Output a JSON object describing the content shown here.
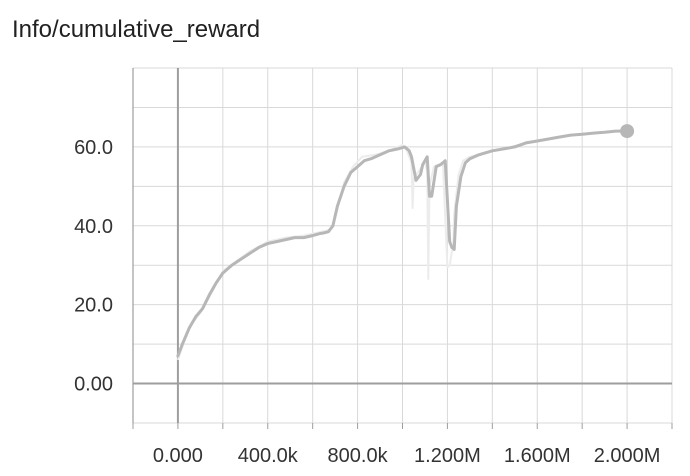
{
  "chart_data": {
    "type": "line",
    "title": "Info/cumulative_reward",
    "xlabel": "",
    "ylabel": "",
    "xlim": [
      -200000,
      2200000
    ],
    "ylim": [
      -10,
      80
    ],
    "x_ticks": [
      0,
      400000,
      800000,
      1200000,
      1600000,
      2000000
    ],
    "x_tick_labels": [
      "0.000",
      "400.0k",
      "800.0k",
      "1.200M",
      "1.600M",
      "2.000M"
    ],
    "y_ticks": [
      0,
      20,
      40,
      60
    ],
    "y_tick_labels": [
      "0.00",
      "20.0",
      "40.0",
      "60.0"
    ],
    "grid": true,
    "legend": "none",
    "colors": {
      "smoothed": "#b7b7b7",
      "raw": "#ececec",
      "grid": "#d9d9d9",
      "zero_axis": "#9e9e9e",
      "frame": "#9e9e9e"
    },
    "series": [
      {
        "role": "smoothed",
        "x": [
          0,
          20000,
          50000,
          80000,
          110000,
          140000,
          170000,
          200000,
          240000,
          280000,
          320000,
          360000,
          400000,
          440000,
          480000,
          520000,
          560000,
          600000,
          630000,
          650000,
          670000,
          690000,
          710000,
          740000,
          770000,
          800000,
          830000,
          860000,
          900000,
          940000,
          980000,
          1010000,
          1030000,
          1040000,
          1060000,
          1080000,
          1090000,
          1110000,
          1120000,
          1130000,
          1150000,
          1170000,
          1190000,
          1210000,
          1220000,
          1230000,
          1240000,
          1260000,
          1280000,
          1300000,
          1320000,
          1340000,
          1370000,
          1400000,
          1450000,
          1500000,
          1550000,
          1600000,
          1650000,
          1700000,
          1750000,
          1800000,
          1850000,
          1900000,
          1950000,
          2000000
        ],
        "y": [
          7,
          10,
          14,
          17,
          19,
          22.5,
          25.5,
          28,
          30,
          31.5,
          33,
          34.5,
          35.5,
          36,
          36.5,
          37,
          37,
          37.5,
          38,
          38.2,
          38.5,
          40,
          45,
          50,
          53.5,
          55,
          56.5,
          57,
          58,
          59,
          59.5,
          60,
          59,
          57.5,
          51.5,
          53,
          55.5,
          57.5,
          47.5,
          47.5,
          55,
          55.5,
          56.5,
          36,
          34.5,
          34,
          45,
          52.5,
          56,
          57,
          57.5,
          58,
          58.5,
          59,
          59.5,
          60,
          61,
          61.5,
          62,
          62.5,
          63,
          63.2,
          63.5,
          63.7,
          64,
          64
        ]
      },
      {
        "role": "raw",
        "x": [
          0,
          30000,
          60000,
          100000,
          150000,
          200000,
          260000,
          320000,
          400000,
          480000,
          560000,
          640000,
          680000,
          700000,
          740000,
          780000,
          820000,
          880000,
          940000,
          1000000,
          1020000,
          1040000,
          1045000,
          1050000,
          1080000,
          1100000,
          1110000,
          1115000,
          1120000,
          1140000,
          1180000,
          1200000,
          1210000,
          1220000,
          1225000,
          1230000,
          1250000,
          1270000,
          1300000,
          1360000,
          1450000,
          1550000,
          1650000,
          1750000,
          1850000,
          1950000,
          2000000
        ],
        "y": [
          6,
          11,
          15,
          18,
          23,
          28.5,
          31,
          33.5,
          36,
          37,
          37.5,
          38.5,
          39,
          42,
          51,
          55,
          57.5,
          58,
          59,
          60.5,
          59,
          56,
          44.5,
          52,
          54.5,
          56,
          54,
          26.5,
          50,
          55,
          56,
          29.5,
          30,
          33.5,
          34,
          43,
          53,
          56.5,
          57.5,
          58.5,
          59.5,
          61,
          62,
          63,
          63.5,
          64,
          64.5
        ]
      }
    ],
    "end_marker": {
      "x": 2000000,
      "y": 64
    }
  }
}
